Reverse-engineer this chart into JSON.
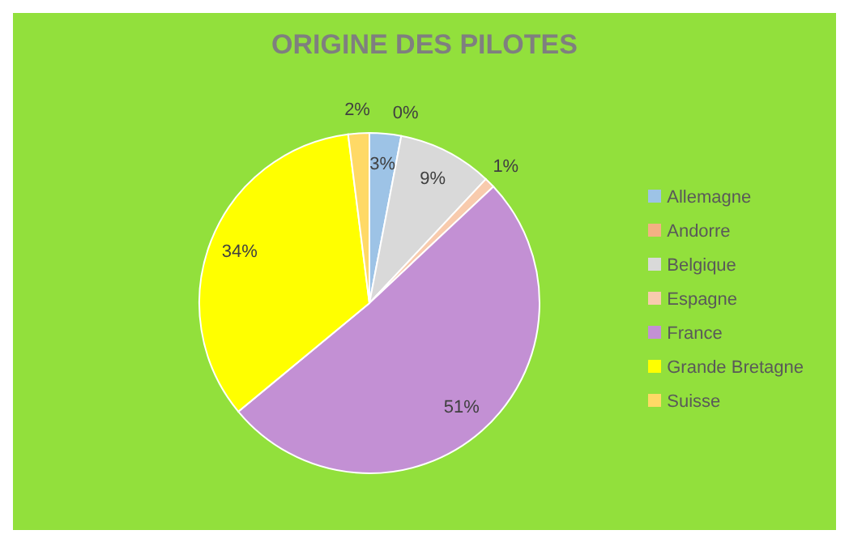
{
  "chart_data": {
    "type": "pie",
    "title": "ORIGINE DES PILOTES",
    "categories": [
      "Allemagne",
      "Andorre",
      "Belgique",
      "Espagne",
      "France",
      "Grande Bretagne",
      "Suisse"
    ],
    "values": [
      3,
      0,
      9,
      1,
      51,
      34,
      2
    ],
    "value_labels": [
      "3%",
      "0%",
      "9%",
      "1%",
      "51%",
      "34%",
      "2%"
    ],
    "colors": [
      "#9dc3e6",
      "#f4b183",
      "#d9d9d9",
      "#f8cbad",
      "#c390d4",
      "#ffff00",
      "#ffd966"
    ],
    "legend": "right"
  }
}
